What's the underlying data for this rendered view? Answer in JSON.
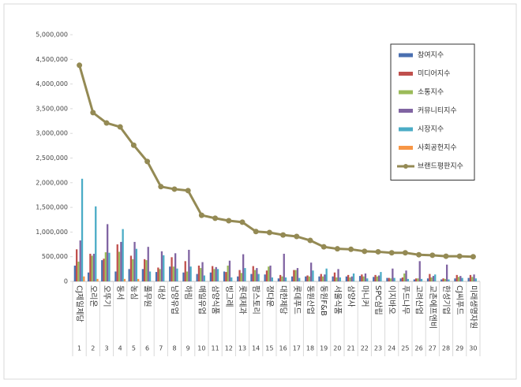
{
  "chart_data": {
    "type": "bar",
    "categories": [
      "CJ제일제당",
      "오리온",
      "오뚜기",
      "동서",
      "농심",
      "풀무원",
      "대상",
      "남양유업",
      "하림",
      "매일유업",
      "삼양식품",
      "빙그레",
      "롯데제과",
      "팜스토리",
      "정다운",
      "대한제당",
      "롯데푸드",
      "동원산업",
      "동원F&B",
      "서울식품",
      "삼양사",
      "마니커",
      "SPC삼립",
      "이지바오",
      "푸드나무",
      "고려산업",
      "교촌에프엔비",
      "한성기업",
      "CJ씨푸드",
      "미래생명자원"
    ],
    "ranks": [
      1,
      2,
      3,
      4,
      5,
      6,
      7,
      8,
      9,
      10,
      11,
      12,
      13,
      14,
      15,
      16,
      17,
      18,
      19,
      20,
      21,
      22,
      23,
      24,
      25,
      26,
      27,
      28,
      29,
      30
    ],
    "series": [
      {
        "name": "참여지수",
        "color": "#4a6fb0",
        "values": [
          320000,
          180000,
          430000,
          200000,
          250000,
          250000,
          190000,
          300000,
          180000,
          150000,
          180000,
          200000,
          100000,
          150000,
          140000,
          60000,
          100000,
          100000,
          100000,
          100000,
          100000,
          110000,
          90000,
          70000,
          60000,
          40000,
          60000,
          40000,
          60000,
          70000
        ]
      },
      {
        "name": "미디어지수",
        "color": "#c0504d",
        "values": [
          650000,
          560000,
          460000,
          750000,
          520000,
          450000,
          280000,
          490000,
          410000,
          320000,
          310000,
          190000,
          230000,
          310000,
          220000,
          130000,
          230000,
          120000,
          150000,
          180000,
          130000,
          140000,
          130000,
          70000,
          80000,
          60000,
          150000,
          60000,
          130000,
          130000
        ]
      },
      {
        "name": "소통지수",
        "color": "#9bbb59",
        "values": [
          400000,
          520000,
          590000,
          600000,
          450000,
          430000,
          250000,
          300000,
          200000,
          270000,
          250000,
          320000,
          170000,
          230000,
          300000,
          100000,
          230000,
          100000,
          100000,
          80000,
          80000,
          100000,
          100000,
          60000,
          160000,
          60000,
          80000,
          50000,
          90000,
          90000
        ]
      },
      {
        "name": "커뮤니티지수",
        "color": "#8064a2",
        "values": [
          830000,
          560000,
          1160000,
          800000,
          800000,
          700000,
          610000,
          570000,
          640000,
          390000,
          290000,
          420000,
          550000,
          270000,
          320000,
          560000,
          270000,
          380000,
          140000,
          250000,
          100000,
          160000,
          120000,
          260000,
          220000,
          410000,
          110000,
          340000,
          110000,
          140000
        ]
      },
      {
        "name": "시장지수",
        "color": "#4bacc6",
        "values": [
          2080000,
          1520000,
          580000,
          1060000,
          660000,
          200000,
          530000,
          260000,
          300000,
          120000,
          250000,
          80000,
          270000,
          150000,
          80000,
          80000,
          70000,
          220000,
          260000,
          80000,
          160000,
          60000,
          190000,
          70000,
          50000,
          50000,
          140000,
          40000,
          70000,
          60000
        ]
      },
      {
        "name": "사회공헌지수",
        "color": "#f79646",
        "values": [
          100000,
          50000,
          0,
          50000,
          50000,
          0,
          0,
          0,
          0,
          0,
          0,
          0,
          0,
          0,
          0,
          0,
          0,
          0,
          0,
          0,
          0,
          0,
          0,
          0,
          0,
          0,
          0,
          0,
          0,
          0
        ]
      },
      {
        "name": "브랜드평판지수",
        "type": "line",
        "color": "#948a54",
        "values": [
          4380000,
          3420000,
          3210000,
          3130000,
          2760000,
          2430000,
          1920000,
          1870000,
          1840000,
          1340000,
          1280000,
          1230000,
          1200000,
          1010000,
          990000,
          940000,
          910000,
          830000,
          700000,
          660000,
          650000,
          610000,
          600000,
          580000,
          580000,
          540000,
          530000,
          510000,
          510000,
          500000
        ]
      }
    ],
    "ylim": [
      0,
      5000000
    ],
    "yticks": [
      0,
      {
        "value": 500000,
        "label": "500,000"
      },
      {
        "value": 1000000,
        "label": "1,000,000"
      },
      {
        "value": 1500000,
        "label": "1,500,000"
      },
      {
        "value": 2000000,
        "label": "2,000,000"
      },
      {
        "value": 2500000,
        "label": "2,500,000"
      },
      {
        "value": 3000000,
        "label": "3,000,000"
      },
      {
        "value": 3500000,
        "label": "3,500,000"
      },
      {
        "value": 4000000,
        "label": "4,000,000"
      },
      {
        "value": 4500000,
        "label": "4,500,000"
      },
      {
        "value": 5000000,
        "label": "5,000,000"
      }
    ],
    "grid": false,
    "legend": "top-right"
  }
}
